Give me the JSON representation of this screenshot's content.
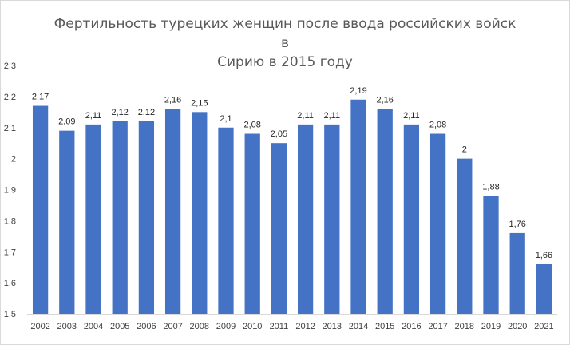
{
  "chart_data": {
    "type": "bar",
    "title_lines": [
      "Фертильность турецких женщин после ввода российских войск в",
      "Сирию в 2015 году"
    ],
    "categories": [
      "2002",
      "2003",
      "2004",
      "2005",
      "2006",
      "2007",
      "2008",
      "2009",
      "2010",
      "2011",
      "2012",
      "2013",
      "2014",
      "2015",
      "2016",
      "2017",
      "2018",
      "2019",
      "2020",
      "2021"
    ],
    "values": [
      2.17,
      2.09,
      2.11,
      2.12,
      2.12,
      2.16,
      2.15,
      2.1,
      2.08,
      2.05,
      2.11,
      2.11,
      2.19,
      2.16,
      2.11,
      2.08,
      2,
      1.88,
      1.76,
      1.66
    ],
    "data_labels": [
      "2,17",
      "2,09",
      "2,11",
      "2,12",
      "2,12",
      "2,16",
      "2,15",
      "2,1",
      "2,08",
      "2,05",
      "2,11",
      "2,11",
      "2,19",
      "2,16",
      "2,11",
      "2,08",
      "2",
      "1,88",
      "1,76",
      "1,66"
    ],
    "ylim": [
      1.5,
      2.3
    ],
    "y_ticks": [
      1.5,
      1.6,
      1.7,
      1.8,
      1.9,
      2,
      2.1,
      2.2,
      2.3
    ],
    "y_tick_labels": [
      "1,5",
      "1,6",
      "1,7",
      "1,8",
      "1,9",
      "2",
      "2,1",
      "2,2",
      "2,3"
    ],
    "bar_color": "#4472c4",
    "grid": false,
    "legend": "none"
  }
}
